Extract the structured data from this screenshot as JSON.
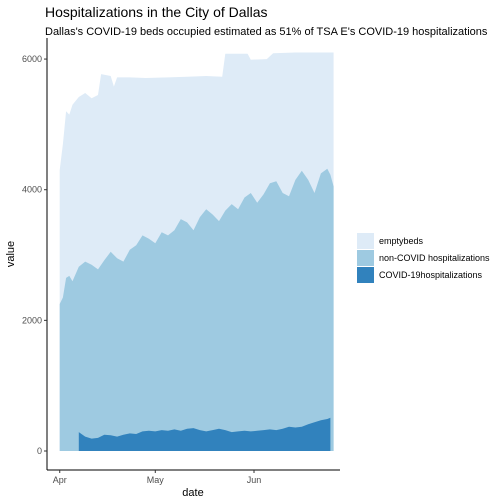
{
  "chart_data": {
    "type": "area",
    "stacked": true,
    "title": "Hospitalizations in the City of Dallas",
    "subtitle": "Dallas's COVID-19 beds occupied estimated as 51% of TSA E's COVID-19 hospitalizations",
    "xlabel": "date",
    "ylabel": "value",
    "ylim": [
      0,
      6200
    ],
    "xlim": [
      "2020-03-28",
      "2020-06-28"
    ],
    "y_ticks": [
      0,
      2000,
      4000,
      6000
    ],
    "x_ticks": [
      {
        "date": "2020-04-01",
        "label": "Apr"
      },
      {
        "date": "2020-05-01",
        "label": "May"
      },
      {
        "date": "2020-06-01",
        "label": "Jun"
      }
    ],
    "grid": false,
    "legend": "right",
    "series": [
      {
        "name": "COVID-19hospitalizations",
        "color": "#3182bd",
        "points": [
          [
            "2020-04-07",
            0
          ],
          [
            "2020-04-07",
            290
          ],
          [
            "2020-04-09",
            220
          ],
          [
            "2020-04-11",
            190
          ],
          [
            "2020-04-13",
            200
          ],
          [
            "2020-04-15",
            250
          ],
          [
            "2020-04-17",
            240
          ],
          [
            "2020-04-19",
            220
          ],
          [
            "2020-04-21",
            250
          ],
          [
            "2020-04-23",
            270
          ],
          [
            "2020-04-25",
            260
          ],
          [
            "2020-04-27",
            300
          ],
          [
            "2020-04-29",
            310
          ],
          [
            "2020-05-01",
            300
          ],
          [
            "2020-05-03",
            320
          ],
          [
            "2020-05-05",
            310
          ],
          [
            "2020-05-07",
            330
          ],
          [
            "2020-05-09",
            310
          ],
          [
            "2020-05-11",
            340
          ],
          [
            "2020-05-13",
            350
          ],
          [
            "2020-05-15",
            320
          ],
          [
            "2020-05-17",
            300
          ],
          [
            "2020-05-19",
            320
          ],
          [
            "2020-05-21",
            340
          ],
          [
            "2020-05-23",
            320
          ],
          [
            "2020-05-25",
            290
          ],
          [
            "2020-05-27",
            300
          ],
          [
            "2020-05-29",
            310
          ],
          [
            "2020-05-31",
            300
          ],
          [
            "2020-06-02",
            310
          ],
          [
            "2020-06-04",
            320
          ],
          [
            "2020-06-06",
            330
          ],
          [
            "2020-06-08",
            320
          ],
          [
            "2020-06-10",
            340
          ],
          [
            "2020-06-12",
            370
          ],
          [
            "2020-06-14",
            360
          ],
          [
            "2020-06-16",
            370
          ],
          [
            "2020-06-18",
            410
          ],
          [
            "2020-06-20",
            440
          ],
          [
            "2020-06-22",
            470
          ],
          [
            "2020-06-24",
            490
          ],
          [
            "2020-06-25",
            510
          ]
        ]
      },
      {
        "name": "non-COVID hospitalizations",
        "color": "#9ecae1",
        "totals": [
          [
            "2020-04-01",
            2250
          ],
          [
            "2020-04-02",
            2350
          ],
          [
            "2020-04-03",
            2650
          ],
          [
            "2020-04-04",
            2680
          ],
          [
            "2020-04-05",
            2600
          ],
          [
            "2020-04-07",
            2820
          ],
          [
            "2020-04-09",
            2900
          ],
          [
            "2020-04-11",
            2850
          ],
          [
            "2020-04-13",
            2780
          ],
          [
            "2020-04-15",
            2920
          ],
          [
            "2020-04-17",
            3050
          ],
          [
            "2020-04-19",
            2950
          ],
          [
            "2020-04-21",
            2900
          ],
          [
            "2020-04-23",
            3080
          ],
          [
            "2020-04-25",
            3150
          ],
          [
            "2020-04-27",
            3300
          ],
          [
            "2020-04-29",
            3250
          ],
          [
            "2020-05-01",
            3180
          ],
          [
            "2020-05-03",
            3350
          ],
          [
            "2020-05-05",
            3300
          ],
          [
            "2020-05-07",
            3380
          ],
          [
            "2020-05-09",
            3550
          ],
          [
            "2020-05-11",
            3500
          ],
          [
            "2020-05-13",
            3380
          ],
          [
            "2020-05-15",
            3580
          ],
          [
            "2020-05-17",
            3700
          ],
          [
            "2020-05-19",
            3620
          ],
          [
            "2020-05-21",
            3520
          ],
          [
            "2020-05-23",
            3680
          ],
          [
            "2020-05-25",
            3780
          ],
          [
            "2020-05-27",
            3700
          ],
          [
            "2020-05-29",
            3880
          ],
          [
            "2020-05-31",
            3950
          ],
          [
            "2020-06-02",
            3800
          ],
          [
            "2020-06-04",
            3930
          ],
          [
            "2020-06-06",
            4100
          ],
          [
            "2020-06-08",
            4130
          ],
          [
            "2020-06-10",
            3950
          ],
          [
            "2020-06-12",
            3900
          ],
          [
            "2020-06-14",
            4150
          ],
          [
            "2020-06-16",
            4290
          ],
          [
            "2020-06-18",
            4150
          ],
          [
            "2020-06-20",
            3950
          ],
          [
            "2020-06-22",
            4250
          ],
          [
            "2020-06-24",
            4320
          ],
          [
            "2020-06-25",
            4230
          ],
          [
            "2020-06-26",
            4050
          ]
        ]
      },
      {
        "name": "emptybeds",
        "color": "#deebf7",
        "totals": [
          [
            "2020-04-01",
            4300
          ],
          [
            "2020-04-02",
            4700
          ],
          [
            "2020-04-03",
            5200
          ],
          [
            "2020-04-04",
            5150
          ],
          [
            "2020-04-05",
            5300
          ],
          [
            "2020-04-07",
            5420
          ],
          [
            "2020-04-09",
            5480
          ],
          [
            "2020-04-11",
            5400
          ],
          [
            "2020-04-13",
            5450
          ],
          [
            "2020-04-14",
            5770
          ],
          [
            "2020-04-17",
            5740
          ],
          [
            "2020-04-18",
            5580
          ],
          [
            "2020-04-19",
            5720
          ],
          [
            "2020-04-23",
            5720
          ],
          [
            "2020-04-28",
            5710
          ],
          [
            "2020-05-05",
            5720
          ],
          [
            "2020-05-11",
            5730
          ],
          [
            "2020-05-17",
            5740
          ],
          [
            "2020-05-22",
            5730
          ],
          [
            "2020-05-23",
            6080
          ],
          [
            "2020-05-30",
            6080
          ],
          [
            "2020-05-31",
            5990
          ],
          [
            "2020-06-05",
            6000
          ],
          [
            "2020-06-07",
            6090
          ],
          [
            "2020-06-14",
            6100
          ],
          [
            "2020-06-26",
            6100
          ]
        ]
      }
    ]
  }
}
